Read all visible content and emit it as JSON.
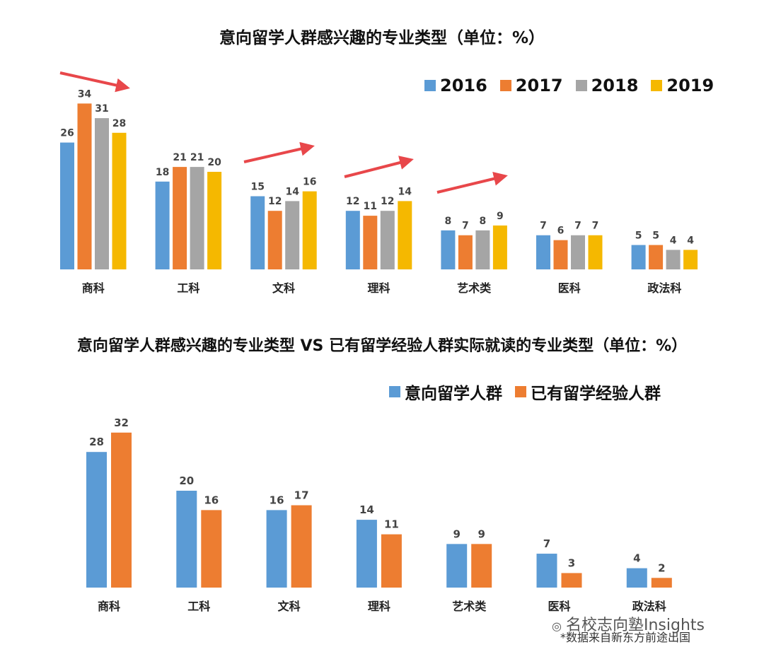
{
  "chart_data": [
    {
      "type": "bar",
      "title": "意向留学人群感兴趣的专业类型（单位：%）",
      "categories": [
        "商科",
        "工科",
        "文科",
        "理科",
        "艺术类",
        "医科",
        "政法科"
      ],
      "series": [
        {
          "name": "2016",
          "color": "#5b9bd5",
          "values": [
            26,
            18,
            15,
            12,
            8,
            7,
            5
          ]
        },
        {
          "name": "2017",
          "color": "#ed7d31",
          "values": [
            34,
            21,
            12,
            11,
            7,
            6,
            5
          ]
        },
        {
          "name": "2018",
          "color": "#a5a5a5",
          "values": [
            31,
            21,
            14,
            12,
            8,
            7,
            4
          ]
        },
        {
          "name": "2019",
          "color": "#f5b800",
          "values": [
            28,
            20,
            16,
            14,
            9,
            7,
            4
          ]
        }
      ],
      "ylim": [
        0,
        36
      ],
      "grid": false,
      "legend": "top-right",
      "annotations": "red upward trend arrows over 商科, 文科, 理科, 艺术类"
    },
    {
      "type": "bar",
      "title": "意向留学人群感兴趣的专业类型 VS 已有留学经验人群实际就读的专业类型（单位：%）",
      "categories": [
        "商科",
        "工科",
        "文科",
        "理科",
        "艺术类",
        "医科",
        "政法科"
      ],
      "series": [
        {
          "name": "意向留学人群",
          "color": "#5b9bd5",
          "values": [
            28,
            20,
            16,
            14,
            9,
            7,
            4
          ]
        },
        {
          "name": "已有留学经验人群",
          "color": "#ed7d31",
          "values": [
            32,
            16,
            17,
            11,
            9,
            3,
            2
          ]
        }
      ],
      "ylim": [
        0,
        36
      ],
      "grid": false,
      "legend": "top-right"
    }
  ],
  "footer": {
    "brand": "名校志向塾Insights",
    "source": "*数据来自新东方前途出国"
  }
}
